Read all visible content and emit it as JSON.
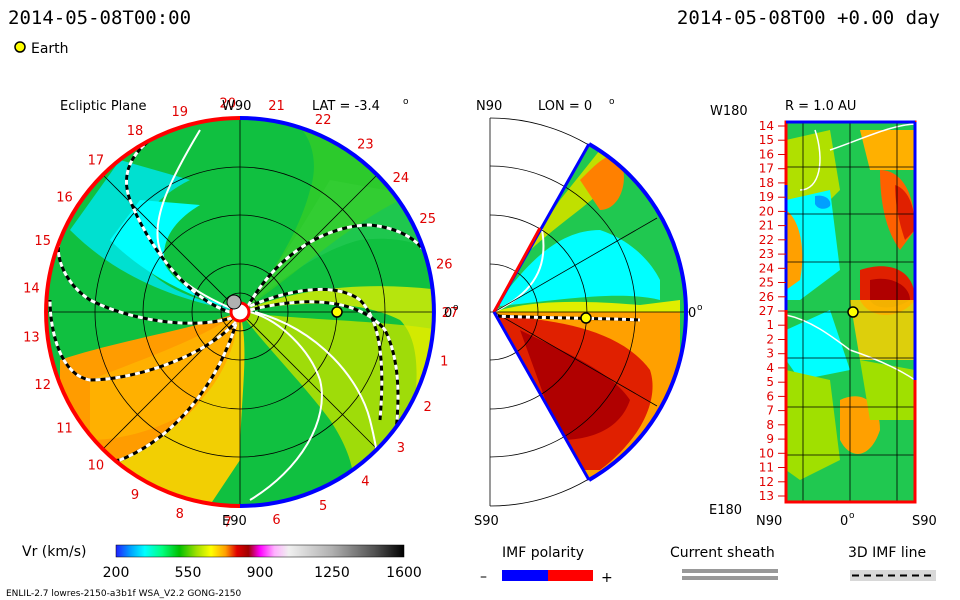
{
  "header": {
    "left_timestamp": "2014-05-08T00:00",
    "right_timestamp": "2014-05-08T00 +0.00 day",
    "earth_legend": "Earth"
  },
  "ecliptic": {
    "title": "Ecliptic Plane",
    "top_label": "W90",
    "bottom_label": "E90",
    "right_label": "0",
    "lat_label": "LAT = -3.4",
    "degree_mark": "o",
    "carrington_numbers": [
      "1",
      "2",
      "3",
      "4",
      "5",
      "6",
      "7",
      "8",
      "9",
      "10",
      "11",
      "12",
      "13",
      "14",
      "15",
      "16",
      "17",
      "18",
      "19",
      "20",
      "21",
      "22",
      "23",
      "24",
      "25",
      "26",
      "27"
    ],
    "earth_angle_deg": 0
  },
  "meridional": {
    "title": "LON = 0",
    "degree_mark": "o",
    "top_label": "N90",
    "bottom_label": "S90",
    "right_label": "0"
  },
  "latlon": {
    "title": "R = 1.0 AU",
    "top_left_label": "W180",
    "bottom_left_label": "E180",
    "bottom_labels": [
      "N90",
      "0",
      "S90"
    ],
    "rows": [
      "14",
      "15",
      "16",
      "17",
      "18",
      "19",
      "20",
      "21",
      "22",
      "23",
      "24",
      "25",
      "26",
      "27",
      "1",
      "2",
      "3",
      "4",
      "5",
      "6",
      "7",
      "8",
      "9",
      "10",
      "11",
      "12",
      "13"
    ]
  },
  "colorbar": {
    "label": "Vr (km/s)",
    "ticks": [
      "200",
      "550",
      "900",
      "1250",
      "1600"
    ],
    "min": 200,
    "max": 1600
  },
  "legends": {
    "imf_polarity": "IMF polarity",
    "minus": "–",
    "plus": "+",
    "current_sheath": "Current sheath",
    "imf_line": "3D IMF line",
    "neg_color": "#0000ff",
    "pos_color": "#ff0000"
  },
  "footer": {
    "model_info": "ENLIL-2.7 lowres-2150-a3b1f WSA_V2.2 GONG-2150"
  }
}
